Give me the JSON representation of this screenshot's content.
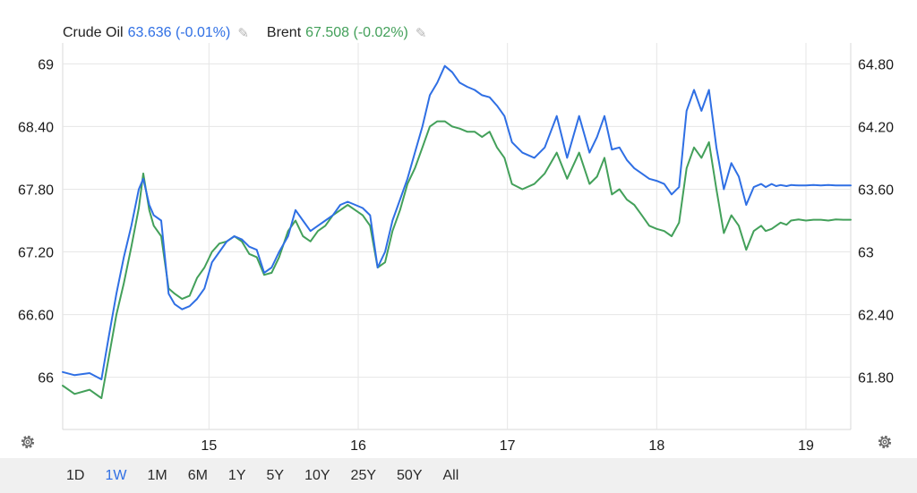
{
  "legend": {
    "series1_name": "Crude Oil",
    "series1_value": "63.636 (-0.01%)",
    "series2_name": "Brent",
    "series2_value": "67.508 (-0.02%)"
  },
  "range_buttons": [
    "1D",
    "1W",
    "1M",
    "6M",
    "1Y",
    "5Y",
    "10Y",
    "25Y",
    "50Y",
    "All"
  ],
  "active_range": "1W",
  "icons": {
    "edit": "pencil-icon",
    "settings": "gear-icon"
  },
  "chart_data": {
    "type": "line",
    "left_axis": {
      "ylim": [
        65.5,
        69.2
      ],
      "ticks": [
        "69",
        "68.40",
        "67.80",
        "67.20",
        "66.60",
        "66"
      ],
      "tick_values": [
        69,
        68.4,
        67.8,
        67.2,
        66.6,
        66
      ]
    },
    "right_axis": {
      "ylim": [
        61.3,
        65.0
      ],
      "ticks": [
        "64.80",
        "64.20",
        "63.60",
        "63",
        "62.40",
        "61.80"
      ],
      "tick_values": [
        64.8,
        64.2,
        63.6,
        63,
        62.4,
        61.8
      ]
    },
    "x_ticks": [
      "15",
      "16",
      "17",
      "18",
      "19"
    ],
    "x_tick_values": [
      15,
      16,
      17,
      18,
      19
    ],
    "xlim": [
      14.02,
      19.3
    ],
    "grid": true,
    "series": [
      {
        "name": "Crude Oil",
        "axis": "right",
        "color": "#2f6fe4",
        "x": [
          14.02,
          14.1,
          14.2,
          14.28,
          14.33,
          14.38,
          14.43,
          14.48,
          14.53,
          14.56,
          14.6,
          14.63,
          14.68,
          14.73,
          14.77,
          14.82,
          14.87,
          14.92,
          14.97,
          15.02,
          15.07,
          15.12,
          15.17,
          15.22,
          15.27,
          15.32,
          15.37,
          15.42,
          15.47,
          15.53,
          15.58,
          15.63,
          15.68,
          15.73,
          15.78,
          15.83,
          15.88,
          15.93,
          15.98,
          16.03,
          16.08,
          16.13,
          16.18,
          16.23,
          16.28,
          16.33,
          16.38,
          16.43,
          16.48,
          16.53,
          16.58,
          16.63,
          16.68,
          16.73,
          16.78,
          16.83,
          16.88,
          16.93,
          16.98,
          17.03,
          17.1,
          17.18,
          17.25,
          17.33,
          17.4,
          17.48,
          17.55,
          17.6,
          17.65,
          17.7,
          17.75,
          17.8,
          17.85,
          17.9,
          17.95,
          18.0,
          18.05,
          18.1,
          18.15,
          18.2,
          18.25,
          18.3,
          18.35,
          18.4,
          18.45,
          18.5,
          18.55,
          18.6,
          18.65,
          18.7,
          18.73,
          18.77,
          18.8,
          18.83,
          18.87,
          18.9,
          18.95,
          19.0,
          19.05,
          19.1,
          19.15,
          19.2,
          19.25,
          19.3
        ],
        "values": [
          61.85,
          61.82,
          61.84,
          61.78,
          62.2,
          62.6,
          62.95,
          63.25,
          63.6,
          63.7,
          63.45,
          63.35,
          63.3,
          62.6,
          62.5,
          62.45,
          62.48,
          62.55,
          62.65,
          62.9,
          63.0,
          63.1,
          63.15,
          63.12,
          63.05,
          63.02,
          62.8,
          62.85,
          63.0,
          63.15,
          63.4,
          63.3,
          63.2,
          63.25,
          63.3,
          63.35,
          63.45,
          63.48,
          63.45,
          63.42,
          63.35,
          62.85,
          63.0,
          63.3,
          63.5,
          63.7,
          63.95,
          64.2,
          64.5,
          64.62,
          64.78,
          64.72,
          64.62,
          64.58,
          64.55,
          64.5,
          64.48,
          64.4,
          64.3,
          64.05,
          63.95,
          63.9,
          64.0,
          64.3,
          63.9,
          64.3,
          63.95,
          64.1,
          64.3,
          63.98,
          64.0,
          63.88,
          63.8,
          63.75,
          63.7,
          63.68,
          63.65,
          63.55,
          63.62,
          64.35,
          64.55,
          64.35,
          64.55,
          64.0,
          63.6,
          63.85,
          63.72,
          63.45,
          63.62,
          63.65,
          63.62,
          63.65,
          63.63,
          63.64,
          63.63,
          63.64,
          63.636,
          63.636,
          63.64,
          63.636,
          63.64,
          63.636,
          63.636,
          63.636
        ]
      },
      {
        "name": "Brent",
        "axis": "left",
        "color": "#43a05a",
        "x": [
          14.02,
          14.1,
          14.2,
          14.28,
          14.33,
          14.38,
          14.43,
          14.48,
          14.53,
          14.56,
          14.6,
          14.63,
          14.68,
          14.73,
          14.77,
          14.82,
          14.87,
          14.92,
          14.97,
          15.02,
          15.07,
          15.12,
          15.17,
          15.22,
          15.27,
          15.32,
          15.37,
          15.42,
          15.47,
          15.53,
          15.58,
          15.63,
          15.68,
          15.73,
          15.78,
          15.83,
          15.88,
          15.93,
          15.98,
          16.03,
          16.08,
          16.13,
          16.18,
          16.23,
          16.28,
          16.33,
          16.38,
          16.43,
          16.48,
          16.53,
          16.58,
          16.63,
          16.68,
          16.73,
          16.78,
          16.83,
          16.88,
          16.93,
          16.98,
          17.03,
          17.1,
          17.18,
          17.25,
          17.33,
          17.4,
          17.48,
          17.55,
          17.6,
          17.65,
          17.7,
          17.75,
          17.8,
          17.85,
          17.9,
          17.95,
          18.0,
          18.05,
          18.1,
          18.15,
          18.2,
          18.25,
          18.3,
          18.35,
          18.4,
          18.45,
          18.5,
          18.55,
          18.6,
          18.65,
          18.7,
          18.73,
          18.77,
          18.8,
          18.83,
          18.87,
          18.9,
          18.95,
          19.0,
          19.05,
          19.1,
          19.15,
          19.2,
          19.25,
          19.3
        ],
        "values": [
          65.92,
          65.84,
          65.88,
          65.8,
          66.2,
          66.6,
          66.9,
          67.25,
          67.62,
          67.95,
          67.6,
          67.45,
          67.35,
          66.85,
          66.8,
          66.75,
          66.78,
          66.95,
          67.05,
          67.2,
          67.28,
          67.3,
          67.35,
          67.3,
          67.18,
          67.15,
          66.98,
          67.0,
          67.15,
          67.4,
          67.5,
          67.35,
          67.3,
          67.4,
          67.45,
          67.55,
          67.6,
          67.65,
          67.6,
          67.55,
          67.45,
          67.05,
          67.1,
          67.4,
          67.6,
          67.85,
          68.0,
          68.2,
          68.4,
          68.45,
          68.45,
          68.4,
          68.38,
          68.35,
          68.35,
          68.3,
          68.35,
          68.2,
          68.1,
          67.85,
          67.8,
          67.85,
          67.95,
          68.15,
          67.9,
          68.15,
          67.85,
          67.92,
          68.1,
          67.75,
          67.8,
          67.7,
          67.65,
          67.55,
          67.45,
          67.42,
          67.4,
          67.35,
          67.48,
          68.0,
          68.2,
          68.1,
          68.25,
          67.8,
          67.38,
          67.55,
          67.45,
          67.22,
          67.4,
          67.45,
          67.4,
          67.42,
          67.45,
          67.48,
          67.46,
          67.5,
          67.51,
          67.5,
          67.508,
          67.508,
          67.5,
          67.51,
          67.508,
          67.508
        ]
      }
    ]
  }
}
